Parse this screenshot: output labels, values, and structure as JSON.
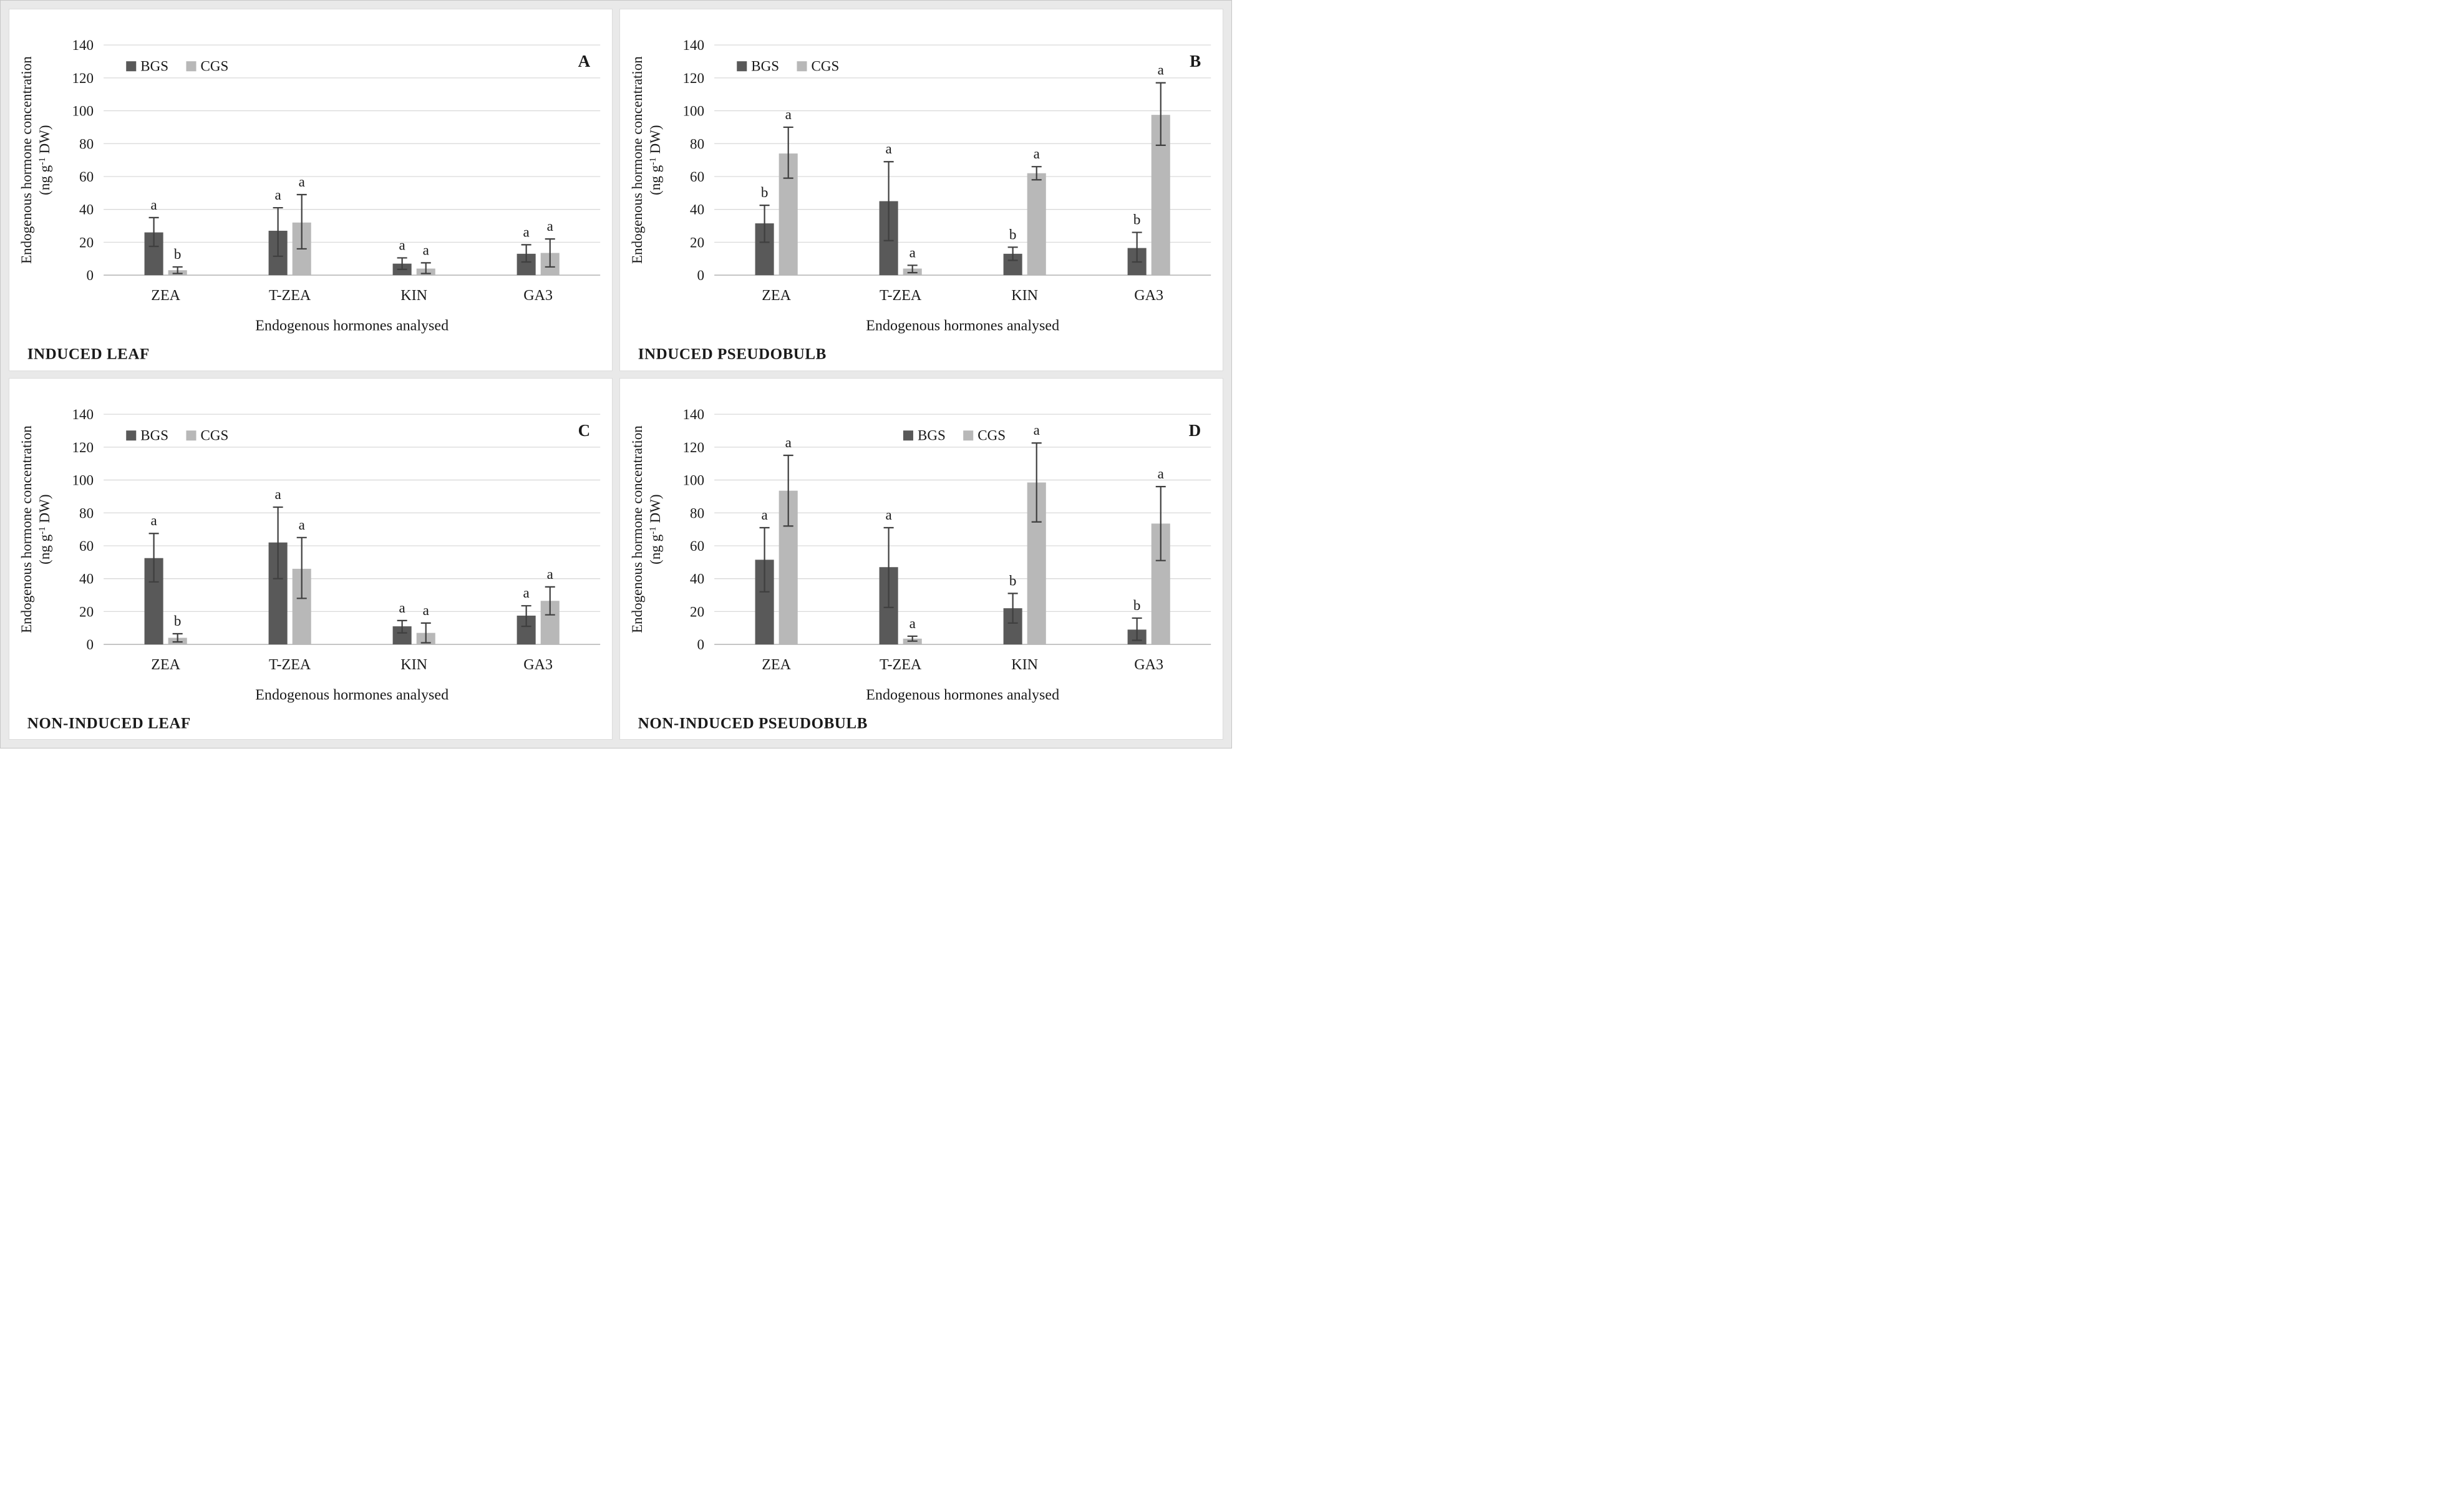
{
  "figure": {
    "y_axis_title_line1": "Endogenous hormone concentration",
    "y_axis_title_line2_pre": "(ng g",
    "y_axis_title_line2_sup": "-1",
    "y_axis_title_line2_post": " DW)",
    "x_axis_title": "Endogenous hormones analysed",
    "y_tick_step": 20,
    "legend": [
      {
        "label": "BGS",
        "color": "#595959"
      },
      {
        "label": "CGS",
        "color": "#b8b8b8"
      }
    ],
    "colors": {
      "bgs_bar": "#595959",
      "cgs_bar": "#b8b8b8",
      "gridline": "#d9d9d9",
      "zero_line": "#bdbdbd",
      "error_bar": "#3f3f3f",
      "text": "#1a1a1a",
      "panel_bg": "#ffffff",
      "gutter_bg": "#e9e9e9"
    }
  },
  "chart_data": [
    {
      "type": "bar",
      "panel_label": "A",
      "title": "INDUCED LEAF",
      "categories": [
        "ZEA",
        "T-ZEA",
        "KIN",
        "GA3"
      ],
      "series": [
        {
          "name": "BGS",
          "values": [
            26,
            27,
            7,
            13
          ],
          "error_low": [
            17.5,
            11.5,
            3.5,
            8
          ],
          "error_high": [
            35,
            41,
            10.5,
            18.5
          ],
          "sig_letters": [
            "a",
            "a",
            "a",
            "a"
          ]
        },
        {
          "name": "CGS",
          "values": [
            3,
            32,
            4,
            13.5
          ],
          "error_low": [
            1,
            16,
            1,
            5
          ],
          "error_high": [
            5,
            49,
            7.5,
            22
          ],
          "sig_letters": [
            "b",
            "a",
            "a",
            "a"
          ]
        }
      ],
      "xlabel": "Endogenous hormones analysed",
      "ylabel": "Endogenous hormone concentration (ng g-1 DW)",
      "ylim": [
        0,
        140
      ],
      "grid": true,
      "legend_align": "left"
    },
    {
      "type": "bar",
      "panel_label": "B",
      "title": "INDUCED PSEUDOBULB",
      "categories": [
        "ZEA",
        "T-ZEA",
        "KIN",
        "GA3"
      ],
      "series": [
        {
          "name": "BGS",
          "values": [
            31.5,
            45,
            13,
            16.5
          ],
          "error_low": [
            20,
            21,
            9,
            8
          ],
          "error_high": [
            42.5,
            69,
            17,
            26
          ],
          "sig_letters": [
            "b",
            "a",
            "b",
            "b"
          ]
        },
        {
          "name": "CGS",
          "values": [
            74,
            4,
            62,
            97.5
          ],
          "error_low": [
            59,
            1.5,
            58,
            79
          ],
          "error_high": [
            90,
            6,
            66,
            117
          ],
          "sig_letters": [
            "a",
            "a",
            "a",
            "a"
          ]
        }
      ],
      "xlabel": "Endogenous hormones analysed",
      "ylabel": "Endogenous hormone concentration (ng g-1 DW)",
      "ylim": [
        0,
        140
      ],
      "grid": true,
      "legend_align": "left"
    },
    {
      "type": "bar",
      "panel_label": "C",
      "title": "NON-INDUCED LEAF",
      "categories": [
        "ZEA",
        "T-ZEA",
        "KIN",
        "GA3"
      ],
      "series": [
        {
          "name": "BGS",
          "values": [
            52.5,
            62,
            11,
            17.5
          ],
          "error_low": [
            38,
            40,
            7,
            11
          ],
          "error_high": [
            67.5,
            83.5,
            14.5,
            23.5
          ],
          "sig_letters": [
            "a",
            "a",
            "a",
            "a"
          ]
        },
        {
          "name": "CGS",
          "values": [
            4,
            46,
            7,
            26.5
          ],
          "error_low": [
            1.5,
            28,
            1,
            18
          ],
          "error_high": [
            6.5,
            65,
            13,
            35
          ],
          "sig_letters": [
            "b",
            "a",
            "a",
            "a"
          ]
        }
      ],
      "xlabel": "Endogenous hormones analysed",
      "ylabel": "Endogenous hormone concentration (ng g-1 DW)",
      "ylim": [
        0,
        140
      ],
      "grid": true,
      "legend_align": "left"
    },
    {
      "type": "bar",
      "panel_label": "D",
      "title": "NON-INDUCED PSEUDOBULB",
      "categories": [
        "ZEA",
        "T-ZEA",
        "KIN",
        "GA3"
      ],
      "series": [
        {
          "name": "BGS",
          "values": [
            51.5,
            47,
            22,
            9
          ],
          "error_low": [
            32,
            22.5,
            13,
            2.5
          ],
          "error_high": [
            71,
            71,
            31,
            16
          ],
          "sig_letters": [
            "a",
            "a",
            "b",
            "b"
          ]
        },
        {
          "name": "CGS",
          "values": [
            93.5,
            3.5,
            98.5,
            73.5
          ],
          "error_low": [
            72,
            2,
            74.5,
            51
          ],
          "error_high": [
            115,
            5,
            122.5,
            96
          ],
          "sig_letters": [
            "a",
            "a",
            "a",
            "a"
          ]
        }
      ],
      "xlabel": "Endogenous hormones analysed",
      "ylabel": "Endogenous hormone concentration (ng g-1 DW)",
      "ylim": [
        0,
        140
      ],
      "grid": true,
      "legend_align": "center"
    }
  ]
}
